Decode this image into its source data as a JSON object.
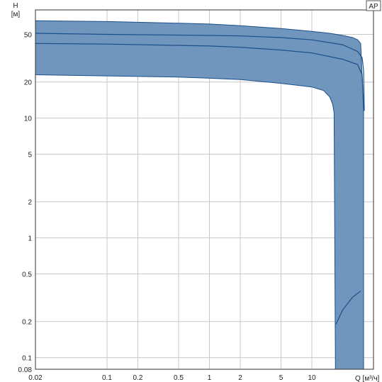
{
  "chart_data": {
    "type": "line",
    "xscale": "log",
    "yscale": "log",
    "grid": true,
    "xlim": [
      0.02,
      40
    ],
    "ylim": [
      0.08,
      80
    ],
    "x_ticks": [
      0.02,
      0.1,
      0.2,
      0.5,
      1,
      2,
      5,
      10
    ],
    "x_tick_labels": [
      "0.02",
      "0.1",
      "0.2",
      "0.5",
      "1",
      "2",
      "5",
      "10"
    ],
    "y_ticks": [
      0.08,
      0.1,
      0.2,
      0.5,
      1,
      2,
      5,
      10,
      20,
      50
    ],
    "y_tick_labels": [
      "0.08",
      "0.1",
      "0.2",
      "0.5",
      "1",
      "2",
      "5",
      "10",
      "20",
      "50"
    ],
    "xlabel": "Q [м³/ч]",
    "ylabel_line1": "H",
    "ylabel_line2": "[м]",
    "badge": "AP",
    "colors": {
      "area": "#7096bd",
      "line": "#1a4f8a",
      "grid": "#c8c8c8"
    },
    "area_upper": [
      [
        0.02,
        65
      ],
      [
        0.1,
        64
      ],
      [
        0.5,
        62
      ],
      [
        1,
        61
      ],
      [
        2,
        59
      ],
      [
        5,
        56
      ],
      [
        10,
        53
      ],
      [
        15,
        51
      ],
      [
        20,
        49
      ],
      [
        25,
        47
      ],
      [
        28,
        45
      ],
      [
        30,
        42
      ],
      [
        32,
        12
      ]
    ],
    "area_lower": [
      [
        0.02,
        23
      ],
      [
        0.1,
        22.5
      ],
      [
        0.5,
        22
      ],
      [
        1,
        21.5
      ],
      [
        2,
        21
      ],
      [
        5,
        19.5
      ],
      [
        10,
        18.2
      ],
      [
        13,
        17
      ],
      [
        15,
        15
      ],
      [
        16,
        13
      ],
      [
        16.5,
        11
      ],
      [
        17,
        0.08
      ]
    ],
    "area_bottom_right": 32,
    "series": [
      {
        "values": [
          [
            0.02,
            51
          ],
          [
            0.1,
            50
          ],
          [
            1,
            49
          ],
          [
            2,
            48.5
          ],
          [
            5,
            47
          ],
          [
            10,
            45
          ],
          [
            20,
            41
          ],
          [
            28,
            36
          ],
          [
            31,
            32
          ],
          [
            32,
            25
          ],
          [
            32.5,
            11.5
          ]
        ]
      },
      {
        "values": [
          [
            0.02,
            42
          ],
          [
            0.1,
            41.5
          ],
          [
            1,
            40
          ],
          [
            2,
            39
          ],
          [
            5,
            37
          ],
          [
            10,
            35
          ],
          [
            20,
            31
          ],
          [
            28,
            28
          ],
          [
            31,
            23
          ],
          [
            32,
            12
          ]
        ]
      },
      {
        "values": [
          [
            17.2,
            0.19
          ],
          [
            20,
            0.25
          ],
          [
            25,
            0.32
          ],
          [
            30,
            0.36
          ]
        ]
      }
    ]
  }
}
